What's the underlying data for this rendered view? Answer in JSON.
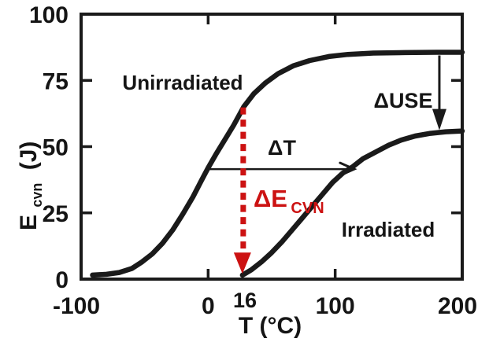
{
  "figure": {
    "background": "#ffffff",
    "ink_color": "#1a1a1a",
    "accent_red": "#cc1212"
  },
  "chart_data": {
    "type": "line",
    "title": "",
    "xlabel": "T (°C)",
    "ylabel": "E_cvn (J)",
    "ylabel_parts": {
      "main": "E",
      "sub": "cvn",
      "unit": "(J)"
    },
    "xlim": [
      -100,
      200
    ],
    "ylim": [
      0,
      100
    ],
    "x_ticks": [
      -100,
      0,
      100,
      200
    ],
    "y_ticks": [
      0,
      25,
      50,
      75,
      100
    ],
    "grid": false,
    "legend_position": "none",
    "series": [
      {
        "name": "Unirradiated",
        "color": "#1a1a1a",
        "points": [
          [
            -91,
            1.5
          ],
          [
            -80,
            1.8
          ],
          [
            -70,
            2.5
          ],
          [
            -60,
            4
          ],
          [
            -52,
            6.5
          ],
          [
            -44,
            9.5
          ],
          [
            -36,
            13.5
          ],
          [
            -28,
            18.5
          ],
          [
            -20,
            24.5
          ],
          [
            -12,
            31
          ],
          [
            -5,
            37.5
          ],
          [
            0,
            42
          ],
          [
            6,
            47
          ],
          [
            13,
            52.5
          ],
          [
            20,
            58
          ],
          [
            28,
            65
          ],
          [
            36,
            70
          ],
          [
            45,
            74
          ],
          [
            55,
            77.5
          ],
          [
            67,
            80.5
          ],
          [
            80,
            82.5
          ],
          [
            95,
            84
          ],
          [
            110,
            84.8
          ],
          [
            130,
            85.3
          ],
          [
            155,
            85.5
          ],
          [
            180,
            85.6
          ],
          [
            200,
            85.6
          ]
        ]
      },
      {
        "name": "Irradiated",
        "color": "#1a1a1a",
        "points": [
          [
            27,
            1.5
          ],
          [
            34,
            3.5
          ],
          [
            42,
            6.5
          ],
          [
            50,
            10
          ],
          [
            58,
            14
          ],
          [
            66,
            18.5
          ],
          [
            74,
            23
          ],
          [
            82,
            27.5
          ],
          [
            90,
            32
          ],
          [
            98,
            36.5
          ],
          [
            106,
            40
          ],
          [
            114,
            42.5
          ],
          [
            122,
            45.5
          ],
          [
            132,
            48
          ],
          [
            142,
            50.5
          ],
          [
            152,
            52.5
          ],
          [
            163,
            54
          ],
          [
            175,
            55
          ],
          [
            187,
            55.6
          ],
          [
            200,
            55.9
          ]
        ]
      }
    ],
    "annotations": {
      "delta_t": {
        "label": "ΔT",
        "y": 41.5,
        "x_start": -2,
        "x_end": 115
      },
      "delta_use": {
        "label": "ΔUSE",
        "x": 182,
        "y_start": 85,
        "y_end": 56.2
      },
      "delta_ecvn": {
        "label_main": "ΔE",
        "label_sub": "CVN",
        "x": 27.6,
        "y_start": 64.8,
        "y_end": 2,
        "color": "#cc1212"
      },
      "shifted_transition_temp_label": "16"
    }
  }
}
